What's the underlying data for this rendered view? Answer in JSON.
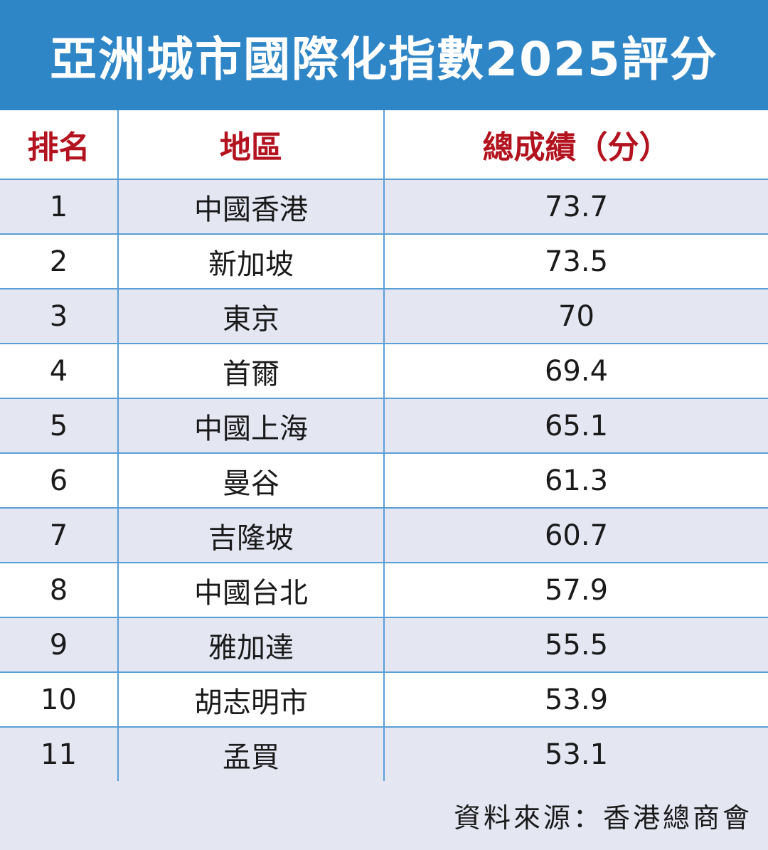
{
  "title": "亞洲城市國際化指數2025評分",
  "headers": {
    "rank": "排名",
    "region": "地區",
    "score": "總成績（分）"
  },
  "rows": [
    {
      "rank": "1",
      "region": "中國香港",
      "score": "73.7"
    },
    {
      "rank": "2",
      "region": "新加坡",
      "score": "73.5"
    },
    {
      "rank": "3",
      "region": "東京",
      "score": "70"
    },
    {
      "rank": "4",
      "region": "首爾",
      "score": "69.4"
    },
    {
      "rank": "5",
      "region": "中國上海",
      "score": "65.1"
    },
    {
      "rank": "6",
      "region": "曼谷",
      "score": "61.3"
    },
    {
      "rank": "7",
      "region": "吉隆坡",
      "score": "60.7"
    },
    {
      "rank": "8",
      "region": "中國台北",
      "score": "57.9"
    },
    {
      "rank": "9",
      "region": "雅加達",
      "score": "55.5"
    },
    {
      "rank": "10",
      "region": "胡志明市",
      "score": "53.9"
    },
    {
      "rank": "11",
      "region": "孟買",
      "score": "53.1"
    }
  ],
  "source": "資料來源：香港總商會",
  "colors": {
    "title_bg": "#2f86c7",
    "header_text": "#b3121f",
    "stripe": "#e4e6f2",
    "grid": "#5a9fd6"
  },
  "chart_data": {
    "type": "table",
    "title": "亞洲城市國際化指數2025評分",
    "columns": [
      "排名",
      "地區",
      "總成績（分）"
    ],
    "categories": [
      "中國香港",
      "新加坡",
      "東京",
      "首爾",
      "中國上海",
      "曼谷",
      "吉隆坡",
      "中國台北",
      "雅加達",
      "胡志明市",
      "孟買"
    ],
    "values": [
      73.7,
      73.5,
      70,
      69.4,
      65.1,
      61.3,
      60.7,
      57.9,
      55.5,
      53.9,
      53.1
    ]
  }
}
